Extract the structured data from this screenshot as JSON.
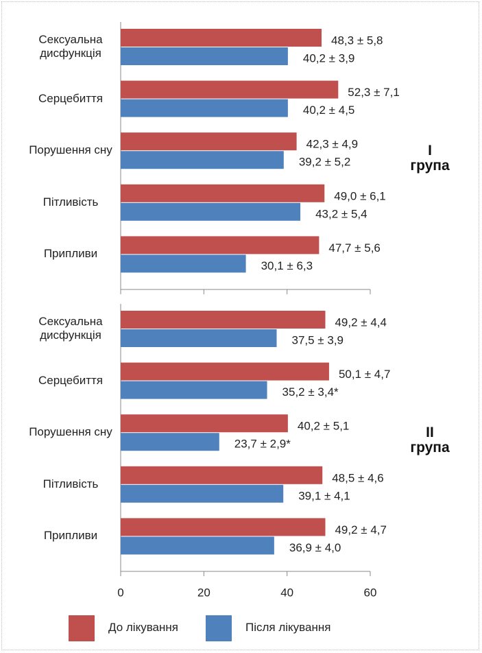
{
  "chart_data": {
    "type": "bar",
    "orientation": "horizontal",
    "categories": [
      "Сексуальна дисфункція",
      "Серцебиття",
      "Порушення сну",
      "Пітливість",
      "Припливи"
    ],
    "series": [
      {
        "name": "До лікування",
        "color": "#c0504d"
      },
      {
        "name": "Після лікування",
        "color": "#4f81bd"
      }
    ],
    "panels": [
      {
        "label": "I група",
        "values": [
          [
            48.3,
            52.3,
            42.3,
            49.0,
            47.7
          ],
          [
            40.2,
            40.2,
            39.2,
            43.2,
            30.1
          ]
        ],
        "value_labels": [
          [
            "48,3 ± 5,8",
            "52,3 ± 7,1",
            "42,3 ± 4,9",
            "49,0 ± 6,1",
            "47,7 ± 5,6"
          ],
          [
            "40,2 ± 3,9",
            "40,2 ± 4,5",
            "39,2 ± 5,2",
            "43,2 ± 5,4",
            "30,1 ± 6,3"
          ]
        ]
      },
      {
        "label": "II група",
        "values": [
          [
            49.2,
            50.1,
            40.2,
            48.5,
            49.2
          ],
          [
            37.5,
            35.2,
            23.7,
            39.1,
            36.9
          ]
        ],
        "value_labels": [
          [
            "49,2 ± 4,4",
            "50,1 ± 4,7",
            "40,2 ± 5,1",
            "48,5 ± 4,6",
            "49,2 ± 4,7"
          ],
          [
            "37,5 ± 3,9",
            "35,2 ± 3,4*",
            "23,7 ± 2,9*",
            "39,1 ± 4,1",
            "36,9 ± 4,0"
          ]
        ]
      }
    ],
    "xlim": [
      0,
      60
    ],
    "xticks": [
      0,
      20,
      40,
      60
    ]
  }
}
